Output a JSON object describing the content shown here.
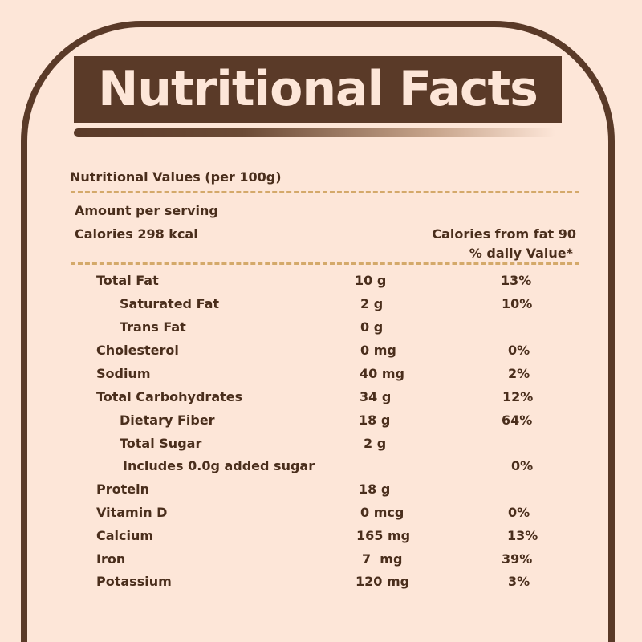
{
  "title": "Nutritional Facts",
  "subtitle": "Nutritional Values (per 100g)",
  "amount_per_serving": "Amount per serving",
  "calories": "Calories 298 kcal",
  "calories_from_fat": "Calories from fat 90",
  "daily_value_header": "% daily Value*",
  "colors": {
    "background": "#fde6d8",
    "brown": "#5a3a28",
    "dash": "#d4a96a"
  },
  "nutrients": [
    {
      "name": "Total Fat",
      "amount": "10 g",
      "dv": "13%"
    },
    {
      "name": "Saturated Fat",
      "amount": "2 g",
      "dv": "10%"
    },
    {
      "name": "Trans Fat",
      "amount": "0 g",
      "dv": ""
    },
    {
      "name": "Cholesterol",
      "amount": "0 mg",
      "dv": "0%"
    },
    {
      "name": "Sodium",
      "amount": "40 mg",
      "dv": "2%"
    },
    {
      "name": "Total Carbohydrates",
      "amount": "34 g",
      "dv": "12%"
    },
    {
      "name": "Dietary Fiber",
      "amount": "18 g",
      "dv": "64%"
    },
    {
      "name": "Total Sugar",
      "amount": "2 g",
      "dv": ""
    },
    {
      "name": "Includes 0.0g added sugar",
      "amount": "",
      "dv": "0%"
    },
    {
      "name": "Protein",
      "amount": "18 g",
      "dv": ""
    },
    {
      "name": "Vitamin D",
      "amount": "0 mcg",
      "dv": "0%"
    },
    {
      "name": "Calcium",
      "amount": "165 mg",
      "dv": "13%"
    },
    {
      "name": "Iron",
      "amount": "7  mg",
      "dv": "39%"
    },
    {
      "name": "Potassium",
      "amount": "120 mg",
      "dv": "3%"
    }
  ]
}
